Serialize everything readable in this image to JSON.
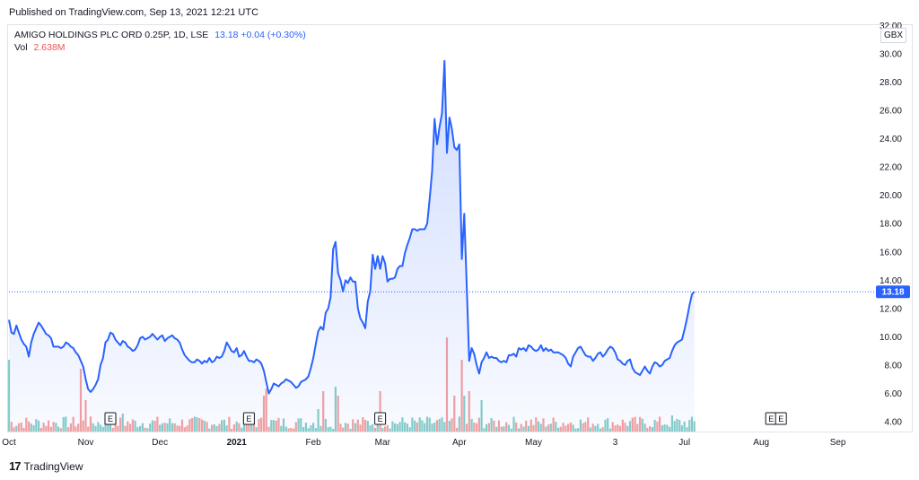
{
  "header": {
    "published": "Published on TradingView.com, Sep 13, 2021 12:21 UTC"
  },
  "legend": {
    "symbol": "AMIGO HOLDINGS PLC ORD 0.25P, 1D, LSE",
    "price": "13.18 +0.04 (+0.30%)",
    "vol_label": "Vol",
    "vol_value": "2.638M"
  },
  "currency": "GBX",
  "footer": {
    "brand": "TradingView",
    "logo": "tradingview-logo-icon"
  },
  "colors": {
    "line": "#2962ff",
    "fill": "#2962ff",
    "vol_up": "#26a69a",
    "vol_down": "#ef5350",
    "last_price": "#2962ff",
    "earnings": "#131722"
  },
  "chart_data": {
    "type": "area",
    "ylim": [
      3,
      32
    ],
    "y_ticks": [
      "4.00",
      "6.00",
      "8.00",
      "10.00",
      "12.00",
      "14.00",
      "16.00",
      "18.00",
      "20.00",
      "22.00",
      "24.00",
      "26.00",
      "28.00",
      "30.00",
      "32.00"
    ],
    "x_tick_labels": [
      "Oct",
      "Nov",
      "Dec",
      "2021",
      "Feb",
      "Mar",
      "Apr",
      "May",
      "3",
      "Jul",
      "Aug",
      "Sep"
    ],
    "x_tick_days": [
      0,
      31,
      61,
      92,
      123,
      151,
      182,
      212,
      245,
      273,
      304,
      335
    ],
    "last_price": "13.18",
    "series": [
      {
        "points": [
          [
            0,
            11.2
          ],
          [
            1,
            10.3
          ],
          [
            2,
            10.2
          ],
          [
            3,
            10.8
          ],
          [
            4,
            10.3
          ],
          [
            5,
            9.8
          ],
          [
            6,
            9.5
          ],
          [
            7,
            9.3
          ],
          [
            8,
            8.6
          ],
          [
            9,
            9.6
          ],
          [
            10,
            10.2
          ],
          [
            11,
            10.6
          ],
          [
            12,
            11.0
          ],
          [
            13,
            10.8
          ],
          [
            14,
            10.5
          ],
          [
            15,
            10.2
          ],
          [
            16,
            10.1
          ],
          [
            17,
            9.9
          ],
          [
            18,
            9.3
          ],
          [
            19,
            9.3
          ],
          [
            20,
            9.3
          ],
          [
            21,
            9.2
          ],
          [
            22,
            9.3
          ],
          [
            23,
            9.6
          ],
          [
            24,
            9.5
          ],
          [
            25,
            9.3
          ],
          [
            26,
            9.2
          ],
          [
            27,
            8.9
          ],
          [
            28,
            8.7
          ],
          [
            29,
            8.3
          ],
          [
            30,
            7.9
          ],
          [
            31,
            7.0
          ],
          [
            32,
            6.3
          ],
          [
            33,
            6.1
          ],
          [
            34,
            6.3
          ],
          [
            35,
            6.6
          ],
          [
            36,
            7.0
          ],
          [
            37,
            8.0
          ],
          [
            38,
            8.5
          ],
          [
            39,
            9.6
          ],
          [
            40,
            9.8
          ],
          [
            41,
            10.3
          ],
          [
            42,
            10.2
          ],
          [
            43,
            9.8
          ],
          [
            44,
            9.6
          ],
          [
            45,
            9.4
          ],
          [
            46,
            9.7
          ],
          [
            47,
            9.6
          ],
          [
            48,
            9.3
          ],
          [
            49,
            9.2
          ],
          [
            50,
            9.0
          ],
          [
            51,
            9.1
          ],
          [
            52,
            9.4
          ],
          [
            53,
            9.9
          ],
          [
            54,
            10.0
          ],
          [
            55,
            9.8
          ],
          [
            56,
            9.9
          ],
          [
            57,
            10.0
          ],
          [
            58,
            10.2
          ],
          [
            59,
            10.0
          ],
          [
            60,
            9.8
          ],
          [
            61,
            10.0
          ],
          [
            62,
            10.1
          ],
          [
            63,
            9.7
          ],
          [
            64,
            9.9
          ],
          [
            65,
            10.0
          ],
          [
            66,
            10.1
          ],
          [
            67,
            9.9
          ],
          [
            68,
            9.8
          ],
          [
            69,
            9.6
          ],
          [
            70,
            9.1
          ],
          [
            71,
            8.7
          ],
          [
            72,
            8.5
          ],
          [
            73,
            8.3
          ],
          [
            74,
            8.2
          ],
          [
            75,
            8.2
          ],
          [
            76,
            8.4
          ],
          [
            77,
            8.3
          ],
          [
            78,
            8.1
          ],
          [
            79,
            8.3
          ],
          [
            80,
            8.2
          ],
          [
            81,
            8.5
          ],
          [
            82,
            8.2
          ],
          [
            83,
            8.3
          ],
          [
            84,
            8.6
          ],
          [
            85,
            8.5
          ],
          [
            86,
            8.6
          ],
          [
            87,
            9.0
          ],
          [
            88,
            9.6
          ],
          [
            89,
            9.3
          ],
          [
            90,
            9.0
          ],
          [
            91,
            8.9
          ],
          [
            92,
            9.2
          ],
          [
            93,
            8.6
          ],
          [
            94,
            8.7
          ],
          [
            95,
            9.0
          ],
          [
            96,
            8.6
          ],
          [
            97,
            8.3
          ],
          [
            98,
            8.3
          ],
          [
            99,
            8.2
          ],
          [
            100,
            8.4
          ],
          [
            101,
            8.3
          ],
          [
            102,
            8.1
          ],
          [
            103,
            7.6
          ],
          [
            104,
            6.8
          ],
          [
            105,
            6.0
          ],
          [
            106,
            6.3
          ],
          [
            107,
            6.7
          ],
          [
            108,
            6.6
          ],
          [
            109,
            6.5
          ],
          [
            110,
            6.7
          ],
          [
            111,
            6.8
          ],
          [
            112,
            7.0
          ],
          [
            113,
            6.9
          ],
          [
            114,
            6.8
          ],
          [
            115,
            6.6
          ],
          [
            116,
            6.4
          ],
          [
            117,
            6.5
          ],
          [
            118,
            6.8
          ],
          [
            119,
            6.9
          ],
          [
            120,
            7.0
          ],
          [
            121,
            7.2
          ],
          [
            122,
            7.8
          ],
          [
            123,
            8.5
          ],
          [
            124,
            9.5
          ],
          [
            125,
            10.4
          ],
          [
            126,
            10.7
          ],
          [
            127,
            10.5
          ],
          [
            128,
            11.7
          ],
          [
            129,
            12.0
          ],
          [
            130,
            12.8
          ],
          [
            131,
            16.2
          ],
          [
            132,
            16.7
          ],
          [
            133,
            14.5
          ],
          [
            134,
            14.0
          ],
          [
            135,
            13.2
          ],
          [
            136,
            14.0
          ],
          [
            137,
            13.8
          ],
          [
            138,
            14.2
          ],
          [
            139,
            13.9
          ],
          [
            140,
            13.9
          ],
          [
            141,
            12.0
          ],
          [
            142,
            11.3
          ],
          [
            143,
            11.0
          ],
          [
            144,
            10.6
          ],
          [
            145,
            12.5
          ],
          [
            146,
            13.2
          ],
          [
            147,
            15.8
          ],
          [
            148,
            14.8
          ],
          [
            149,
            15.7
          ],
          [
            150,
            14.8
          ],
          [
            151,
            15.7
          ],
          [
            152,
            15.2
          ],
          [
            153,
            13.9
          ],
          [
            154,
            14.1
          ],
          [
            155,
            14.1
          ],
          [
            156,
            14.2
          ],
          [
            157,
            14.8
          ],
          [
            158,
            15.0
          ],
          [
            159,
            15.0
          ],
          [
            160,
            15.9
          ],
          [
            161,
            16.5
          ],
          [
            162,
            17.0
          ],
          [
            163,
            17.6
          ],
          [
            164,
            17.6
          ],
          [
            165,
            17.5
          ],
          [
            166,
            17.6
          ],
          [
            167,
            17.6
          ],
          [
            168,
            17.6
          ],
          [
            169,
            18.0
          ],
          [
            170,
            19.7
          ],
          [
            171,
            21.7
          ],
          [
            172,
            25.4
          ],
          [
            173,
            23.6
          ],
          [
            174,
            24.8
          ],
          [
            175,
            25.8
          ],
          [
            176,
            29.5
          ],
          [
            177,
            23.0
          ],
          [
            178,
            25.5
          ],
          [
            179,
            24.7
          ],
          [
            180,
            23.4
          ],
          [
            181,
            23.2
          ],
          [
            182,
            23.6
          ],
          [
            183,
            15.5
          ],
          [
            184,
            18.7
          ],
          [
            185,
            13.5
          ],
          [
            186,
            8.3
          ],
          [
            187,
            9.2
          ],
          [
            188,
            8.8
          ],
          [
            189,
            8.0
          ],
          [
            190,
            7.4
          ],
          [
            191,
            8.2
          ],
          [
            192,
            8.5
          ],
          [
            193,
            8.9
          ],
          [
            194,
            8.5
          ],
          [
            195,
            8.6
          ],
          [
            196,
            8.5
          ],
          [
            197,
            8.5
          ],
          [
            198,
            8.3
          ],
          [
            199,
            8.2
          ],
          [
            200,
            8.3
          ],
          [
            201,
            8.2
          ],
          [
            202,
            8.7
          ],
          [
            203,
            8.7
          ],
          [
            204,
            8.8
          ],
          [
            205,
            8.6
          ],
          [
            206,
            9.2
          ],
          [
            207,
            9.1
          ],
          [
            208,
            9.2
          ],
          [
            209,
            9.0
          ],
          [
            210,
            9.4
          ],
          [
            211,
            9.3
          ],
          [
            212,
            9.1
          ],
          [
            213,
            9.0
          ],
          [
            214,
            9.1
          ],
          [
            215,
            9.4
          ],
          [
            216,
            9.0
          ],
          [
            217,
            9.2
          ],
          [
            218,
            9.0
          ],
          [
            219,
            9.1
          ],
          [
            220,
            8.9
          ],
          [
            221,
            8.9
          ],
          [
            222,
            8.9
          ],
          [
            223,
            8.8
          ],
          [
            224,
            8.7
          ],
          [
            225,
            8.5
          ],
          [
            226,
            8.1
          ],
          [
            227,
            7.9
          ],
          [
            228,
            8.6
          ],
          [
            229,
            8.9
          ],
          [
            230,
            9.2
          ],
          [
            231,
            9.3
          ],
          [
            232,
            9.0
          ],
          [
            233,
            8.7
          ],
          [
            234,
            8.6
          ],
          [
            235,
            8.6
          ],
          [
            236,
            8.3
          ],
          [
            237,
            8.5
          ],
          [
            238,
            8.8
          ],
          [
            239,
            8.9
          ],
          [
            240,
            8.6
          ],
          [
            241,
            8.8
          ],
          [
            242,
            9.1
          ],
          [
            243,
            9.3
          ],
          [
            244,
            9.2
          ],
          [
            245,
            8.9
          ],
          [
            246,
            8.4
          ],
          [
            247,
            8.3
          ],
          [
            248,
            8.1
          ],
          [
            249,
            8.0
          ],
          [
            250,
            8.3
          ],
          [
            251,
            8.4
          ],
          [
            252,
            7.8
          ],
          [
            253,
            7.5
          ],
          [
            254,
            7.4
          ],
          [
            255,
            7.3
          ],
          [
            256,
            7.6
          ],
          [
            257,
            7.9
          ],
          [
            258,
            7.6
          ],
          [
            259,
            7.4
          ],
          [
            260,
            7.9
          ],
          [
            261,
            8.2
          ],
          [
            262,
            8.1
          ],
          [
            263,
            7.9
          ],
          [
            264,
            8.0
          ],
          [
            265,
            8.3
          ],
          [
            266,
            8.4
          ],
          [
            267,
            8.5
          ],
          [
            268,
            9.0
          ],
          [
            269,
            9.4
          ],
          [
            270,
            9.6
          ],
          [
            271,
            9.7
          ],
          [
            272,
            9.8
          ],
          [
            273,
            10.5
          ],
          [
            274,
            11.3
          ],
          [
            275,
            12.2
          ],
          [
            276,
            13.0
          ],
          [
            277,
            13.18
          ]
        ]
      }
    ],
    "earnings_days": [
      41,
      97,
      150,
      308,
      312
    ]
  }
}
